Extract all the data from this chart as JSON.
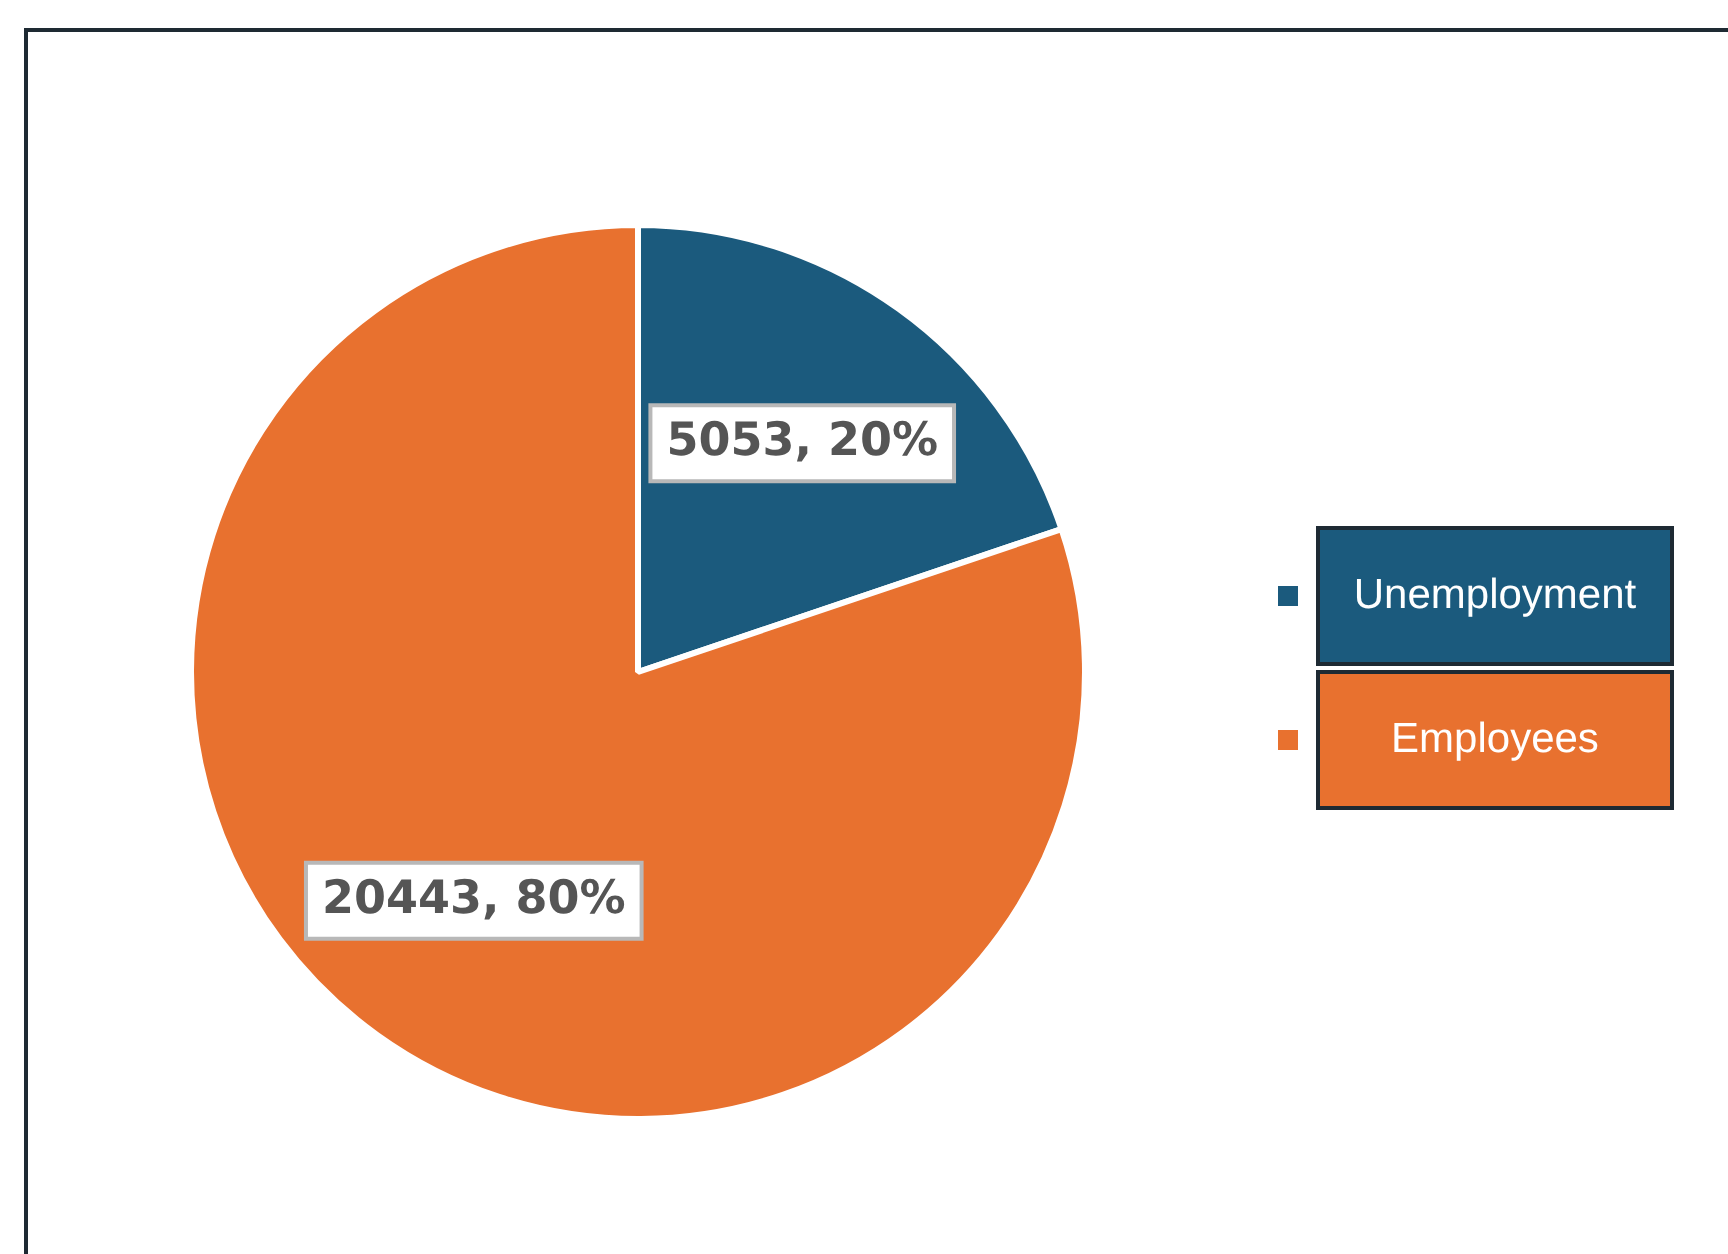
{
  "chart_data": {
    "type": "pie",
    "categories": [
      "Unemployment",
      "Employees"
    ],
    "values": [
      5053,
      20443
    ],
    "colors": [
      "#1b5a7d",
      "#e8712f"
    ],
    "value_labels": [
      "5053, 20%",
      "20443, 80%"
    ],
    "legend": "right"
  }
}
